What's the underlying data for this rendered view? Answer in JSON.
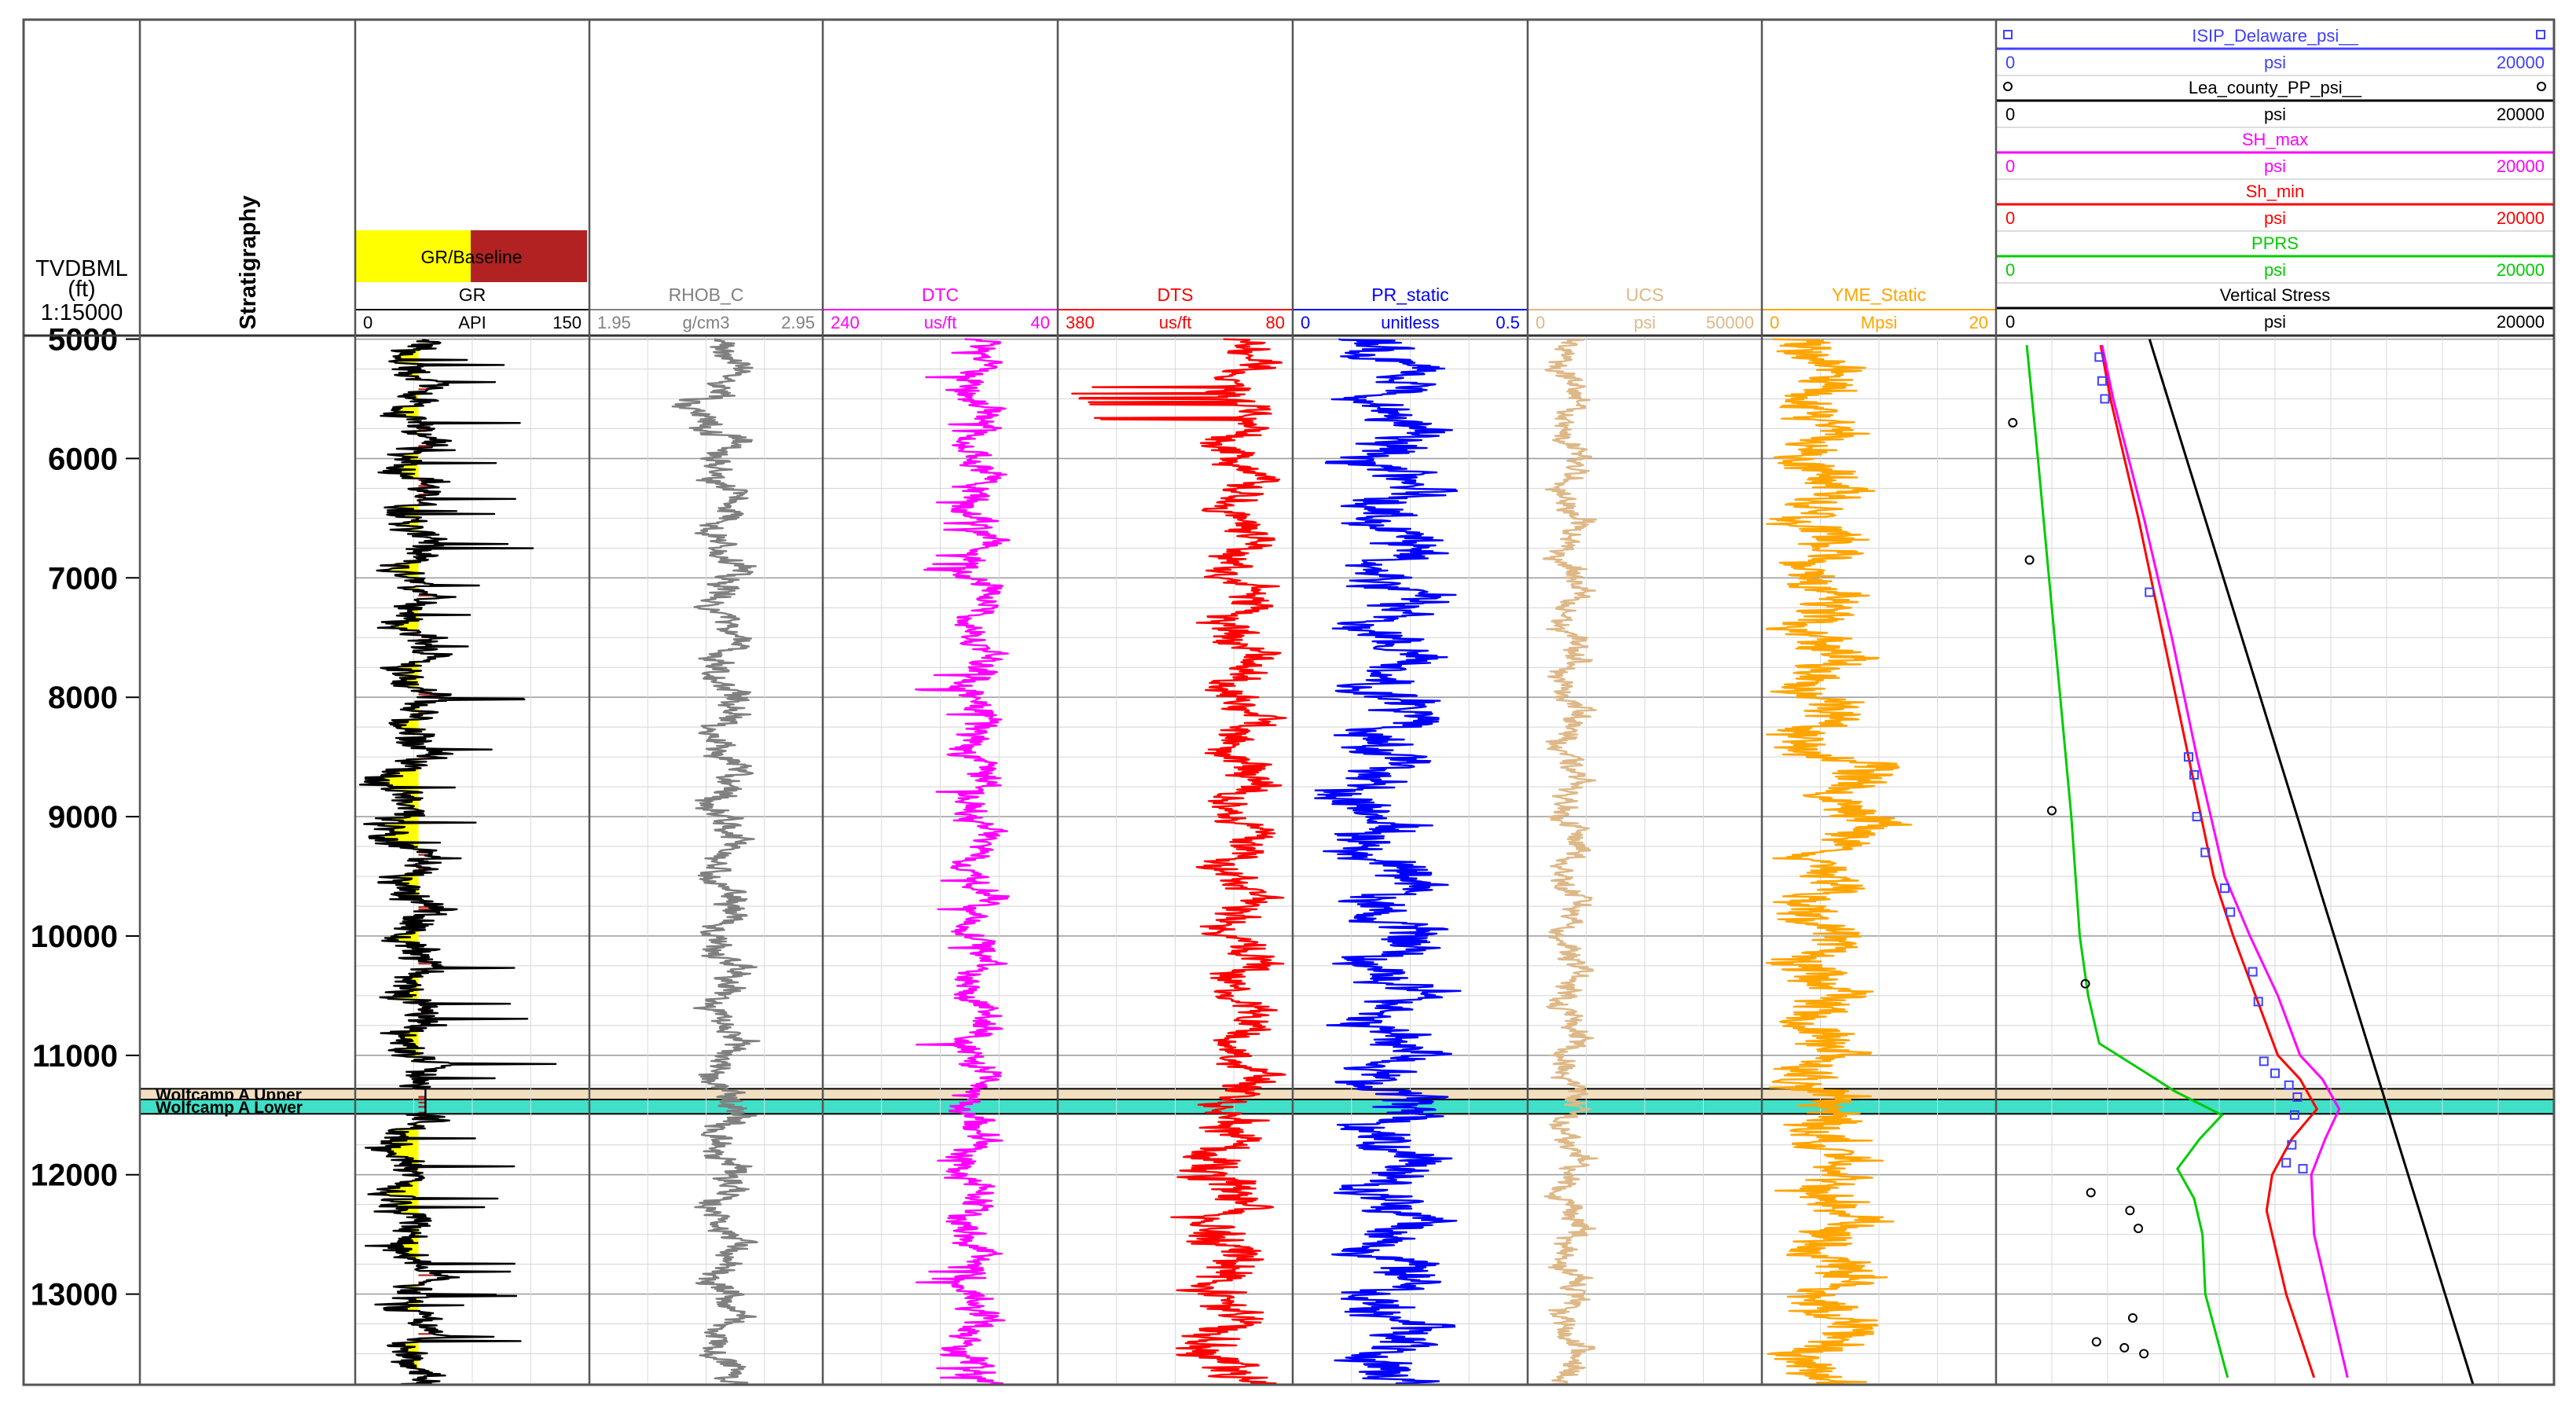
{
  "depth_header": {
    "title": "TVDBML",
    "unit": "(ft)",
    "scale": "1:15000"
  },
  "stratigraphy_header": "Stratigraphy",
  "depth_ticks": [
    "5000",
    "6000",
    "7000",
    "8000",
    "9000",
    "10000",
    "11000",
    "12000",
    "13000"
  ],
  "formations": [
    {
      "name": "Wolfcamp A Upper",
      "top": 11280,
      "base": 11370,
      "color": "#f2dfc0"
    },
    {
      "name": "Wolfcamp A Lower",
      "top": 11370,
      "base": 11490,
      "color": "#40e0c8"
    }
  ],
  "gr_fill_legend": "GR/Baseline",
  "gr_fill_colors": {
    "low": "#ffff00",
    "high": "#b22222"
  },
  "tracks": [
    {
      "name": "GR",
      "unit": "API",
      "min": "0",
      "max": "150",
      "color": "#000000"
    },
    {
      "name": "RHOB_C",
      "unit": "g/cm3",
      "min": "1.95",
      "max": "2.95",
      "color": "#808080"
    },
    {
      "name": "DTC",
      "unit": "us/ft",
      "min": "240",
      "max": "40",
      "color": "#ff00ff"
    },
    {
      "name": "DTS",
      "unit": "us/ft",
      "min": "380",
      "max": "80",
      "color": "#ff0000"
    },
    {
      "name": "PR_static",
      "unit": "unitless",
      "min": "0",
      "max": "0.5",
      "color": "#0000ff"
    },
    {
      "name": "UCS",
      "unit": "psi",
      "min": "0",
      "max": "50000",
      "color": "#deb887"
    },
    {
      "name": "YME_Static",
      "unit": "Mpsi",
      "min": "0",
      "max": "20",
      "color": "#ffa500"
    }
  ],
  "pressure_legend": [
    {
      "name": "ISIP_Delaware_psi__",
      "unit": "psi",
      "min": "0",
      "max": "20000",
      "color": "#4040ff",
      "marker": "square"
    },
    {
      "name": "Lea_county_PP_psi__",
      "unit": "psi",
      "min": "0",
      "max": "20000",
      "color": "#000000",
      "marker": "circle"
    },
    {
      "name": "SH_max",
      "unit": "psi",
      "min": "0",
      "max": "20000",
      "color": "#ff00ff"
    },
    {
      "name": "Sh_min",
      "unit": "psi",
      "min": "0",
      "max": "20000",
      "color": "#ff0000"
    },
    {
      "name": "PPRS",
      "unit": "psi",
      "min": "0",
      "max": "20000",
      "color": "#00cc00"
    },
    {
      "name": "Vertical Stress",
      "unit": "psi",
      "min": "0",
      "max": "20000",
      "color": "#000000"
    }
  ],
  "chart_data": {
    "type": "line",
    "title": "",
    "depth_axis": {
      "label": "TVDBML (ft)",
      "range": [
        4970,
        13760
      ],
      "ticks": [
        5000,
        6000,
        7000,
        8000,
        9000,
        10000,
        11000,
        12000,
        13000
      ]
    },
    "grid": true,
    "series": [
      {
        "name": "Vertical Stress",
        "unit": "psi",
        "range": [
          0,
          20000
        ],
        "points": [
          [
            5000,
            5500
          ],
          [
            13760,
            17100
          ]
        ]
      },
      {
        "name": "Sh_min",
        "unit": "psi",
        "range": [
          0,
          20000
        ],
        "points": [
          [
            5050,
            3750
          ],
          [
            5500,
            4100
          ],
          [
            6500,
            5100
          ],
          [
            7500,
            6000
          ],
          [
            8500,
            6900
          ],
          [
            9500,
            7800
          ],
          [
            10000,
            8500
          ],
          [
            10500,
            9300
          ],
          [
            11000,
            10100
          ],
          [
            11200,
            10900
          ],
          [
            11450,
            11500
          ],
          [
            11700,
            10600
          ],
          [
            12000,
            9900
          ],
          [
            12300,
            9700
          ],
          [
            13000,
            10400
          ],
          [
            13700,
            11400
          ]
        ]
      },
      {
        "name": "SH_max",
        "unit": "psi",
        "range": [
          0,
          20000
        ],
        "points": [
          [
            5050,
            3800
          ],
          [
            5500,
            4200
          ],
          [
            6500,
            5300
          ],
          [
            7500,
            6300
          ],
          [
            8500,
            7200
          ],
          [
            9500,
            8200
          ],
          [
            10000,
            9100
          ],
          [
            10500,
            10100
          ],
          [
            11000,
            10900
          ],
          [
            11200,
            11700
          ],
          [
            11450,
            12300
          ],
          [
            11700,
            11800
          ],
          [
            12000,
            11300
          ],
          [
            12500,
            11400
          ],
          [
            13000,
            11900
          ],
          [
            13700,
            12600
          ]
        ]
      },
      {
        "name": "PPRS",
        "unit": "psi",
        "range": [
          0,
          20000
        ],
        "points": [
          [
            5050,
            1100
          ],
          [
            6000,
            1500
          ],
          [
            7000,
            1900
          ],
          [
            8000,
            2300
          ],
          [
            9000,
            2700
          ],
          [
            10000,
            3000
          ],
          [
            10500,
            3300
          ],
          [
            10900,
            3700
          ],
          [
            11150,
            5400
          ],
          [
            11300,
            6400
          ],
          [
            11500,
            8100
          ],
          [
            11700,
            7300
          ],
          [
            11950,
            6500
          ],
          [
            12200,
            7100
          ],
          [
            12500,
            7400
          ],
          [
            13000,
            7500
          ],
          [
            13700,
            8300
          ]
        ]
      },
      {
        "name": "ISIP_Delaware_psi__",
        "unit": "psi",
        "range": [
          0,
          20000
        ],
        "style": "markers-square",
        "points": [
          [
            5150,
            3700
          ],
          [
            5350,
            3800
          ],
          [
            5500,
            3900
          ],
          [
            7120,
            5500
          ],
          [
            8500,
            6900
          ],
          [
            8650,
            7100
          ],
          [
            9000,
            7200
          ],
          [
            9300,
            7500
          ],
          [
            9600,
            8200
          ],
          [
            9800,
            8400
          ],
          [
            10300,
            9200
          ],
          [
            10550,
            9400
          ],
          [
            11050,
            9600
          ],
          [
            11150,
            10000
          ],
          [
            11250,
            10500
          ],
          [
            11350,
            10800
          ],
          [
            11500,
            10700
          ],
          [
            11750,
            10600
          ],
          [
            11900,
            10400
          ],
          [
            11950,
            11000
          ]
        ]
      },
      {
        "name": "Lea_county_PP_psi__",
        "unit": "psi",
        "range": [
          0,
          20000
        ],
        "style": "markers-circle",
        "points": [
          [
            5700,
            600
          ],
          [
            6850,
            1200
          ],
          [
            8950,
            2000
          ],
          [
            10400,
            3200
          ],
          [
            12150,
            3400
          ],
          [
            12300,
            4800
          ],
          [
            12450,
            5100
          ],
          [
            13200,
            4900
          ],
          [
            13400,
            3600
          ],
          [
            13450,
            4600
          ],
          [
            13500,
            5300
          ]
        ]
      }
    ]
  }
}
